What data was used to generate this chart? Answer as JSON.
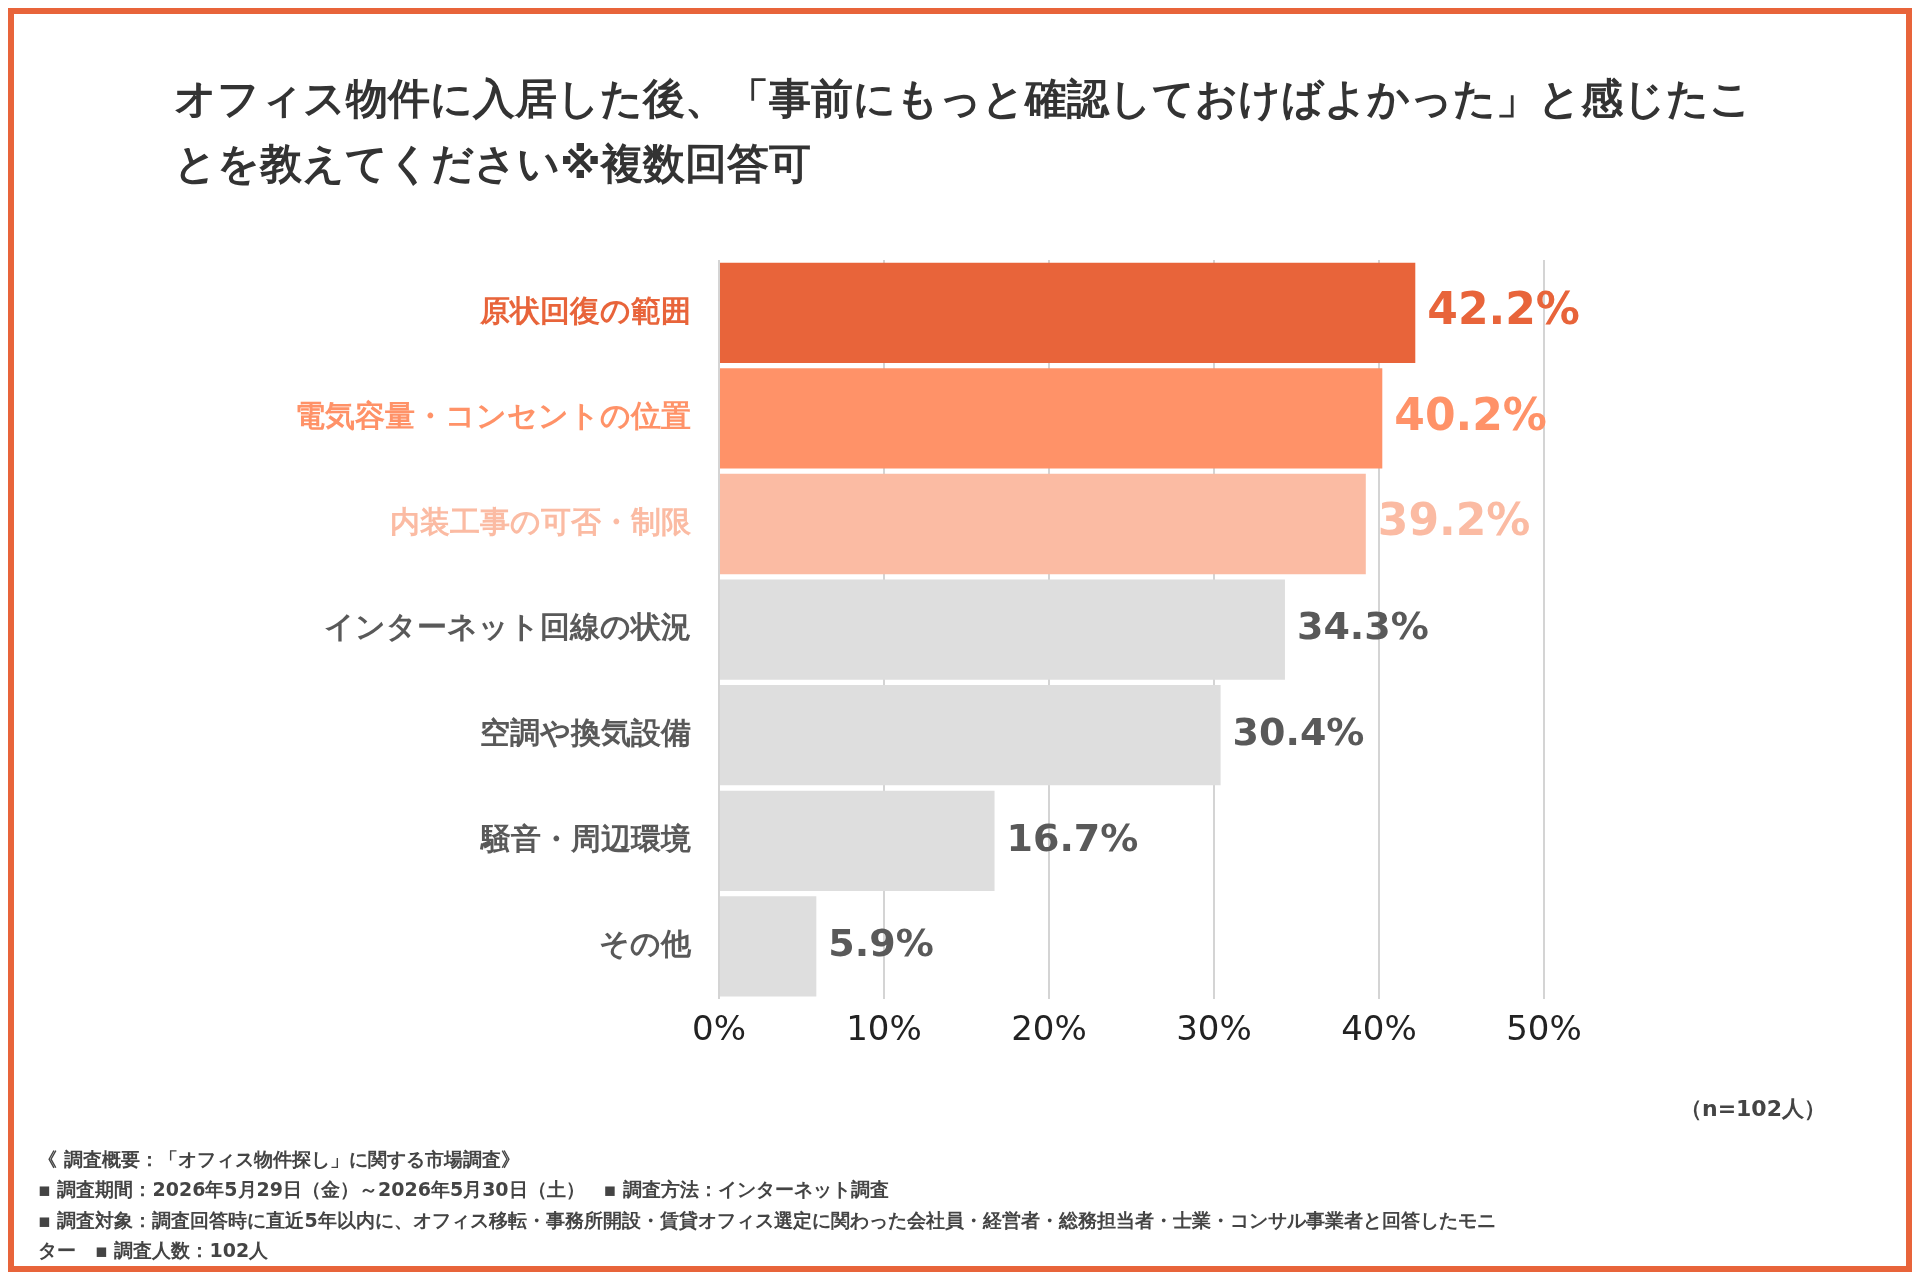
{
  "chart_data": {
    "type": "bar",
    "orientation": "horizontal",
    "title": "オフィス物件に入居した後、「事前にもっと確認しておけばよかった」と感じたことを教えてください※複数回答可",
    "categories": [
      "原状回復の範囲",
      "電気容量・コンセントの位置",
      "内装工事の可否・制限",
      "インターネット回線の状況",
      "空調や換気設備",
      "騒音・周辺環境",
      "その他"
    ],
    "values": [
      42.2,
      40.2,
      39.2,
      34.3,
      30.4,
      16.7,
      5.9
    ],
    "value_labels": [
      "42.2%",
      "40.2%",
      "39.2%",
      "34.3%",
      "30.4%",
      "16.7%",
      "5.9%"
    ],
    "colors": [
      "#e8643a",
      "#ff9268",
      "#fbbba3",
      "#dedede",
      "#dedede",
      "#dedede",
      "#dedede"
    ],
    "xlim": [
      0,
      50
    ],
    "xticks": [
      {
        "value": 0,
        "label": "0%"
      },
      {
        "value": 10,
        "label": "10%"
      },
      {
        "value": 20,
        "label": "20%"
      },
      {
        "value": 30,
        "label": "30%"
      },
      {
        "value": 40,
        "label": "40%"
      },
      {
        "value": 50,
        "label": "50%"
      }
    ],
    "grid": "x",
    "legend": false,
    "annotations": [
      "（n=102人）",
      "《 調査概要：「オフィス物件探し」に関する市場調査》",
      "▪ 調査期間：2026年5月29日（金）～2026年5月30日（土）　▪ 調査方法：インターネット調査",
      "▪ 調査対象：調査回答時に直近5年以内に、オフィス移転・事務所開設・賃貸オフィス選定に関わった会社員・経営者・総務担当者・士業・コンサル事業者と回答したモニター　▪ 調査人数：102人"
    ]
  }
}
